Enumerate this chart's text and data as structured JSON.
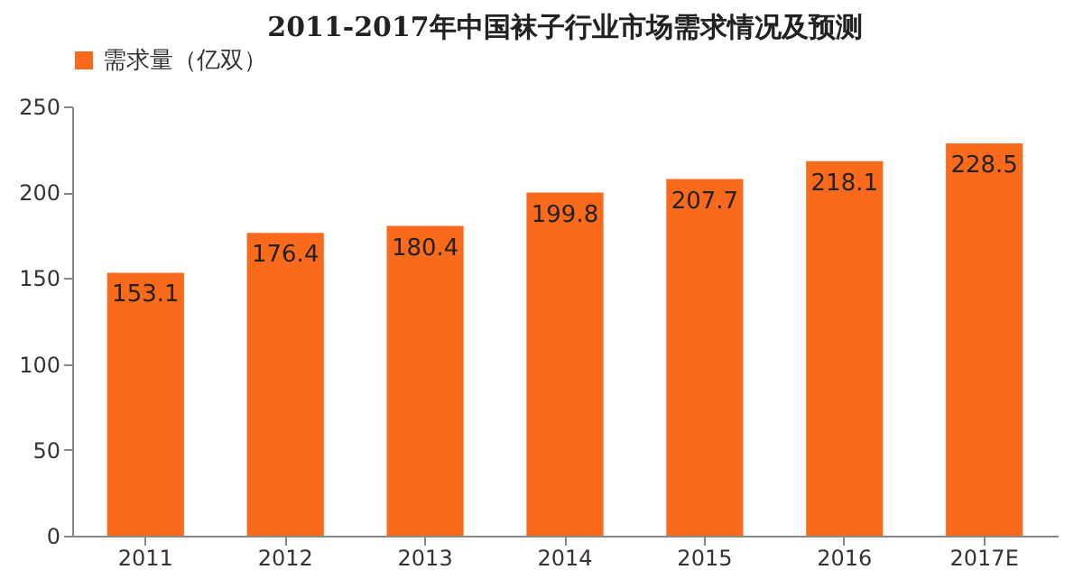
{
  "chart_data": {
    "type": "bar",
    "title": "2011-2017年中国袜子行业市场需求情况及预测",
    "categories": [
      "2011",
      "2012",
      "2013",
      "2014",
      "2015",
      "2016",
      "2017E"
    ],
    "series": [
      {
        "name": "需求量（亿双）",
        "color": "#fa6a1c",
        "values": [
          153.1,
          176.4,
          180.4,
          199.8,
          207.7,
          218.1,
          228.5
        ]
      }
    ],
    "ylim": [
      0,
      250
    ],
    "yticks": [
      0,
      50,
      100,
      150,
      200,
      250
    ],
    "data_labels": true,
    "legend": "top",
    "grid": false
  }
}
